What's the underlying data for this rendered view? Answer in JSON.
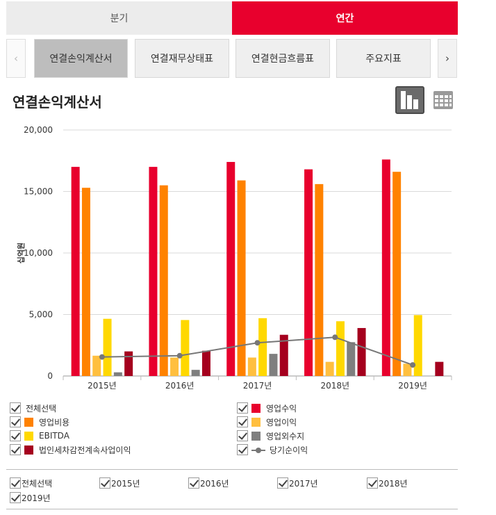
{
  "period_tabs": [
    {
      "label": "분기",
      "active": false
    },
    {
      "label": "연간",
      "active": true
    }
  ],
  "sub_tabs": [
    {
      "label": "연결손익계산서",
      "active": true
    },
    {
      "label": "연결재무상태표",
      "active": false
    },
    {
      "label": "연결현금흐름표",
      "active": false
    },
    {
      "label": "주요지표",
      "active": false
    }
  ],
  "nav": {
    "prev": "‹",
    "next": "›"
  },
  "section_title": "연결손익계산서",
  "icons": {
    "chart_view": "bar-chart-icon",
    "table_view": "table-grid-icon"
  },
  "chart_data": {
    "type": "bar",
    "categories": [
      "2015년",
      "2016년",
      "2017년",
      "2018년",
      "2019년"
    ],
    "ylabel": "십억원",
    "ylim": [
      0,
      20000
    ],
    "yticks": [
      "0",
      "5,000",
      "10,000",
      "15,000",
      "20,000"
    ],
    "grid": true,
    "series": [
      {
        "name": "영업수익",
        "color": "#e8002d",
        "kind": "bar",
        "values": [
          17000,
          17000,
          17400,
          16800,
          17600
        ]
      },
      {
        "name": "영업비용",
        "color": "#ff8200",
        "kind": "bar",
        "values": [
          15300,
          15500,
          15900,
          15600,
          16600
        ]
      },
      {
        "name": "영업이익",
        "color": "#ffbf3f",
        "kind": "bar",
        "values": [
          1650,
          1500,
          1500,
          1150,
          1000
        ]
      },
      {
        "name": "EBITDA",
        "color": "#ffd800",
        "kind": "bar",
        "values": [
          4650,
          4550,
          4700,
          4450,
          4950
        ]
      },
      {
        "name": "영업외수지",
        "color": "#7f7f7f",
        "kind": "bar",
        "values": [
          300,
          500,
          1800,
          2750,
          0
        ]
      },
      {
        "name": "법인세차감전계속사업이익",
        "color": "#a5001e",
        "kind": "bar",
        "values": [
          2000,
          2050,
          3350,
          3900,
          1150
        ]
      },
      {
        "name": "당기순이익",
        "color": "#777777",
        "kind": "line",
        "values": [
          1550,
          1650,
          2700,
          3150,
          900
        ]
      }
    ]
  },
  "legend": [
    {
      "label": "전체선택",
      "swatch": "none"
    },
    {
      "label": "영업수익",
      "swatch": "#e8002d"
    },
    {
      "label": "영업비용",
      "swatch": "#ff8200"
    },
    {
      "label": "영업이익",
      "swatch": "#ffbf3f"
    },
    {
      "label": "EBITDA",
      "swatch": "#ffd800"
    },
    {
      "label": "영업외수지",
      "swatch": "#7f7f7f"
    },
    {
      "label": "법인세차감전계속사업이익",
      "swatch": "#a5001e"
    },
    {
      "label": "당기순이익",
      "swatch": "line"
    }
  ],
  "year_filters": [
    {
      "label": "전체선택"
    },
    {
      "label": "2015년"
    },
    {
      "label": "2016년"
    },
    {
      "label": "2017년"
    },
    {
      "label": "2018년"
    },
    {
      "label": "2019년"
    }
  ]
}
